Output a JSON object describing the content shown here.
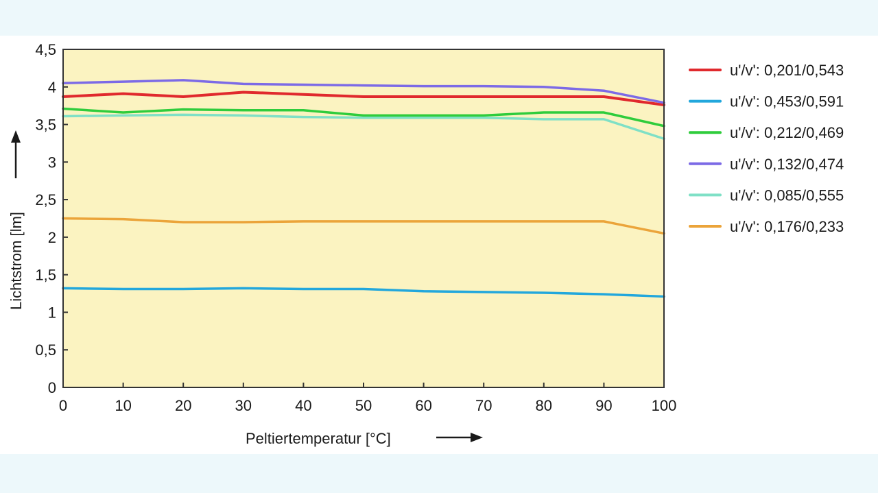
{
  "chart_data": {
    "type": "line",
    "xlabel": "Peltiertemperatur [°C]",
    "ylabel": "Lichtstrom [lm]",
    "xlim": [
      0,
      100
    ],
    "ylim": [
      0,
      4.5
    ],
    "x_ticks": [
      "0",
      "10",
      "20",
      "30",
      "40",
      "50",
      "60",
      "70",
      "80",
      "90",
      "100"
    ],
    "y_ticks": [
      "0",
      "0,5",
      "1",
      "1,5",
      "2",
      "2,5",
      "3",
      "3,5",
      "4",
      "4,5"
    ],
    "grid": false,
    "legend_position": "right",
    "plot_background": "#fbf3c1",
    "x": [
      0,
      10,
      20,
      30,
      40,
      50,
      60,
      70,
      80,
      90,
      100
    ],
    "series": [
      {
        "name": "u'/v': 0,201/0,543",
        "color": "#e0292d",
        "values": [
          3.87,
          3.91,
          3.87,
          3.93,
          3.9,
          3.87,
          3.87,
          3.87,
          3.87,
          3.87,
          3.76
        ]
      },
      {
        "name": "u'/v': 0,453/0,591",
        "color": "#22a7dc",
        "values": [
          1.32,
          1.31,
          1.31,
          1.32,
          1.31,
          1.31,
          1.28,
          1.27,
          1.26,
          1.24,
          1.21
        ]
      },
      {
        "name": "u'/v': 0,212/0,469",
        "color": "#2fcc3c",
        "values": [
          3.71,
          3.66,
          3.7,
          3.69,
          3.69,
          3.62,
          3.62,
          3.62,
          3.66,
          3.66,
          3.48
        ]
      },
      {
        "name": "u'/v': 0,132/0,474",
        "color": "#7c6ae6",
        "values": [
          4.05,
          4.07,
          4.09,
          4.04,
          4.03,
          4.02,
          4.01,
          4.01,
          4.0,
          3.95,
          3.79
        ]
      },
      {
        "name": "u'/v': 0,085/0,555",
        "color": "#7fe0c6",
        "values": [
          3.61,
          3.62,
          3.63,
          3.62,
          3.6,
          3.59,
          3.59,
          3.59,
          3.57,
          3.57,
          3.31
        ]
      },
      {
        "name": "u'/v': 0,176/0,233",
        "color": "#eba43a",
        "values": [
          2.25,
          2.24,
          2.2,
          2.2,
          2.21,
          2.21,
          2.21,
          2.21,
          2.21,
          2.21,
          2.05
        ]
      }
    ]
  }
}
